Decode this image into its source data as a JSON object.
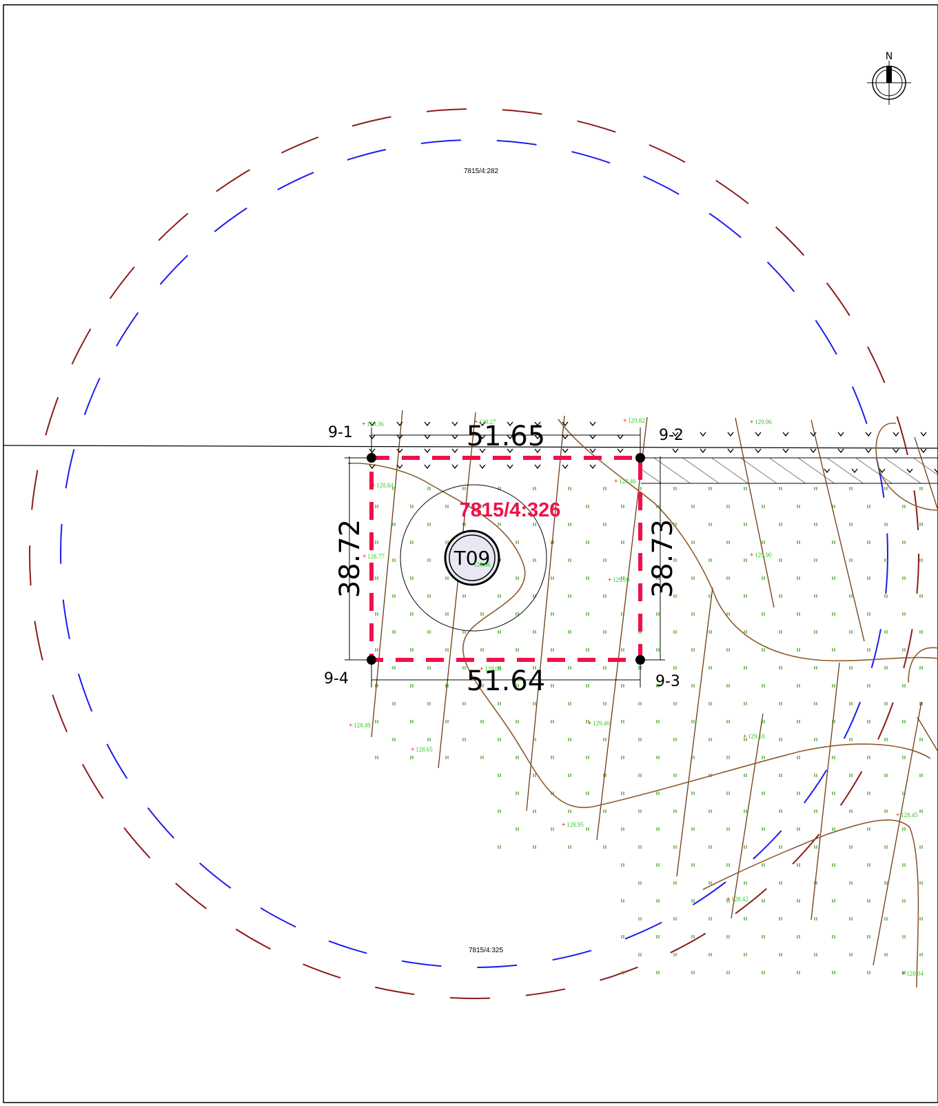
{
  "map": {
    "north_label": "N",
    "parcels": {
      "north": "7815/4:282",
      "south": "7815/4:325",
      "highlight": "7815/4:326"
    },
    "turbine": "T09",
    "dimensions": {
      "top": "51.65",
      "bottom": "51.64",
      "left": "38.72",
      "right": "38.73"
    },
    "corners": {
      "c1": "9-1",
      "c2": "9-2",
      "c3": "9-3",
      "c4": "9-4"
    },
    "elevations": [
      "129.36",
      "129.27",
      "129.82",
      "129.96",
      "128.84",
      "128.46",
      "128.77",
      "129.90",
      "129.00",
      "128.66",
      "129.06",
      "128.49",
      "129.40",
      "128.65",
      "129.18",
      "128.95",
      "128.45",
      "128.42",
      "128.04"
    ],
    "colors": {
      "buffer_outer": "#8b1a1a",
      "buffer_inner": "#1a1af0",
      "parcel_boundary": "#f0104a",
      "contour": "#8b5a2b",
      "grass": "#3a9a1a",
      "elevation_text": "#2ecc1f"
    }
  }
}
